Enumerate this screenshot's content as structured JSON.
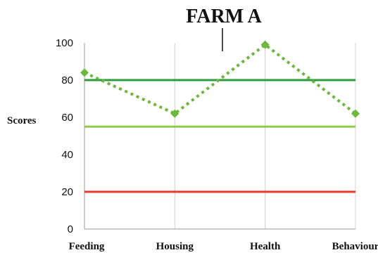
{
  "chart_data": {
    "type": "line",
    "title": "FARM A",
    "ylabel": "Scores",
    "xlabel": "",
    "categories": [
      "Feeding",
      "Housing",
      "Health",
      "Behaviour"
    ],
    "ylim": [
      0,
      100
    ],
    "yticks": [
      0,
      20,
      40,
      60,
      80,
      100
    ],
    "grid": "vertical",
    "series": [
      {
        "values": [
          84,
          62,
          99,
          62
        ],
        "color": "#6bb83a",
        "style": "dotted",
        "marker": "diamond"
      }
    ],
    "reference_lines": [
      {
        "value": 80,
        "color": "#2e9a3c"
      },
      {
        "value": 55,
        "color": "#8ccc4e"
      },
      {
        "value": 20,
        "color": "#e8392b"
      }
    ]
  }
}
